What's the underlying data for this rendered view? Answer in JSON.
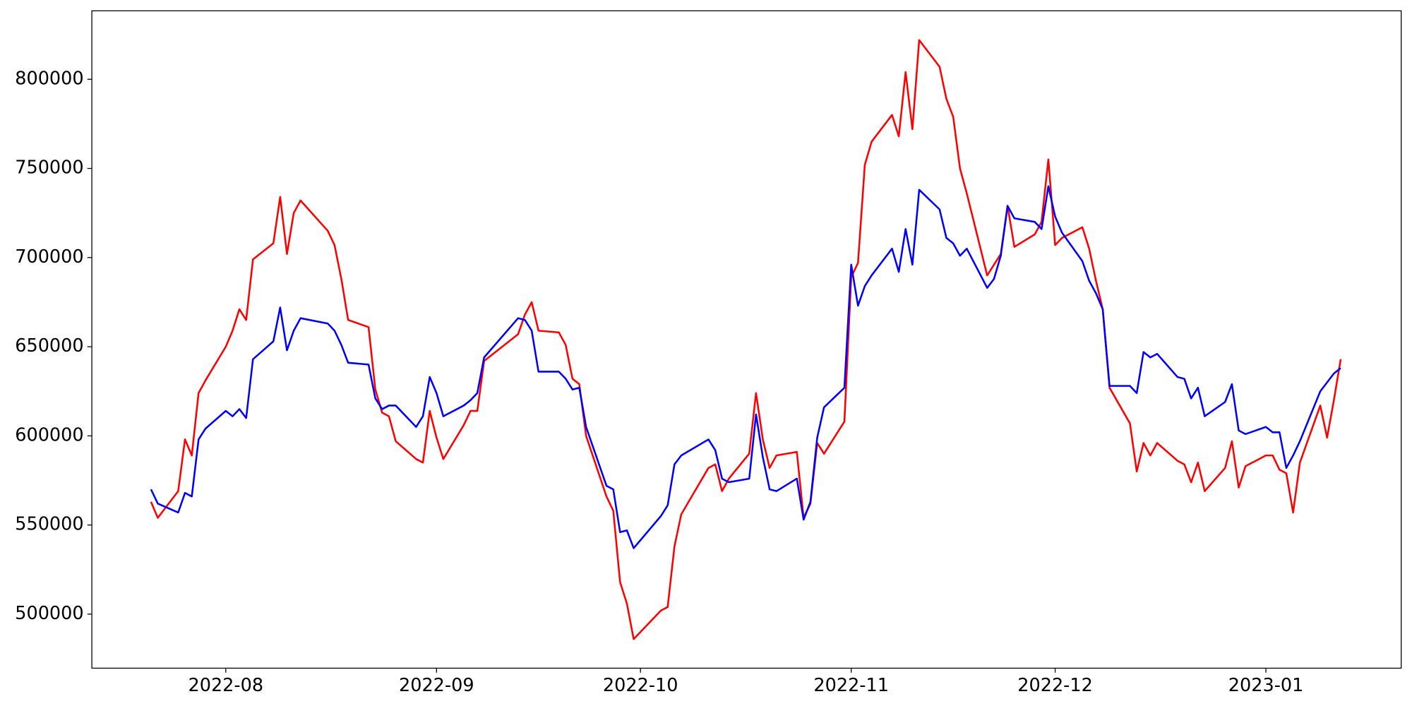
{
  "chart_data": {
    "type": "line",
    "x": [
      19194,
      19195,
      19198,
      19199,
      19200,
      19201,
      19202,
      19205,
      19206,
      19207,
      19208,
      19209,
      19212,
      19213,
      19214,
      19215,
      19216,
      19220,
      19221,
      19222,
      19223,
      19226,
      19227,
      19228,
      19229,
      19230,
      19233,
      19234,
      19235,
      19236,
      19237,
      19240,
      19241,
      19242,
      19243,
      19248,
      19249,
      19250,
      19251,
      19254,
      19255,
      19256,
      19257,
      19258,
      19261,
      19262,
      19263,
      19264,
      19265,
      19269,
      19270,
      19271,
      19272,
      19276,
      19277,
      19278,
      19279,
      19282,
      19283,
      19284,
      19285,
      19286,
      19289,
      19290,
      19291,
      19292,
      19293,
      19296,
      19297,
      19298,
      19299,
      19300,
      19303,
      19304,
      19305,
      19306,
      19307,
      19310,
      19311,
      19312,
      19313,
      19314,
      19317,
      19318,
      19319,
      19320,
      19321,
      19324,
      19325,
      19326,
      19327,
      19328,
      19331,
      19332,
      19333,
      19334,
      19335,
      19338,
      19339,
      19340,
      19341,
      19342,
      19345,
      19346,
      19347,
      19348,
      19349,
      19352,
      19353,
      19354,
      19355,
      19358,
      19359,
      19360,
      19361,
      19362,
      19363,
      19366,
      19367,
      19368,
      19369
    ],
    "series": [
      {
        "color": "red",
        "values": [
          563000,
          554000,
          569000,
          598000,
          589000,
          624000,
          631000,
          650000,
          659000,
          671000,
          665000,
          699000,
          708000,
          734000,
          702000,
          725000,
          732000,
          715000,
          707000,
          688000,
          665000,
          661000,
          626000,
          613000,
          611000,
          597000,
          587000,
          585000,
          614000,
          599000,
          587000,
          606000,
          614000,
          614000,
          642000,
          657000,
          668000,
          675000,
          659000,
          658000,
          651000,
          632000,
          629000,
          600000,
          566000,
          558000,
          518000,
          506000,
          486000,
          502000,
          504000,
          538000,
          556000,
          582000,
          584000,
          569000,
          576000,
          590000,
          624000,
          598000,
          582000,
          589000,
          591000,
          554000,
          562000,
          596000,
          590000,
          608000,
          689000,
          697000,
          752000,
          765000,
          780000,
          768000,
          804000,
          772000,
          822000,
          807000,
          789000,
          779000,
          750000,
          736000,
          690000,
          696000,
          702000,
          729000,
          706000,
          713000,
          720000,
          755000,
          707000,
          711000,
          717000,
          705000,
          687000,
          671000,
          627000,
          607000,
          580000,
          596000,
          589000,
          596000,
          586000,
          584000,
          574000,
          585000,
          569000,
          582000,
          597000,
          571000,
          583000,
          589000,
          589000,
          581000,
          579000,
          557000,
          585000,
          617000,
          599000,
          620000,
          643000
        ]
      },
      {
        "color": "blue",
        "values": [
          570000,
          562000,
          557000,
          568000,
          566000,
          598000,
          604000,
          614000,
          611000,
          615000,
          610000,
          643000,
          653000,
          672000,
          648000,
          659000,
          666000,
          663000,
          659000,
          651000,
          641000,
          640000,
          621000,
          615000,
          617000,
          617000,
          605000,
          611000,
          633000,
          624000,
          611000,
          617000,
          620000,
          624000,
          644000,
          666000,
          665000,
          659000,
          636000,
          636000,
          632000,
          626000,
          627000,
          605000,
          572000,
          570000,
          546000,
          547000,
          537000,
          555000,
          561000,
          584000,
          589000,
          598000,
          592000,
          576000,
          574000,
          576000,
          612000,
          588000,
          570000,
          569000,
          576000,
          553000,
          563000,
          599000,
          616000,
          627000,
          696000,
          673000,
          684000,
          690000,
          705000,
          692000,
          716000,
          696000,
          738000,
          727000,
          711000,
          708000,
          701000,
          705000,
          683000,
          688000,
          701000,
          729000,
          722000,
          720000,
          716000,
          740000,
          723000,
          714000,
          698000,
          687000,
          680000,
          671000,
          628000,
          628000,
          624000,
          647000,
          644000,
          646000,
          633000,
          632000,
          621000,
          627000,
          611000,
          619000,
          629000,
          603000,
          601000,
          605000,
          602000,
          602000,
          582000,
          589000,
          597000,
          625000,
          630000,
          635000,
          638000
        ]
      }
    ],
    "xlim": [
      19185.3,
      19377.9
    ],
    "xticks": [
      {
        "value": 19205,
        "label": "2022-08"
      },
      {
        "value": 19236,
        "label": "2022-09"
      },
      {
        "value": 19266,
        "label": "2022-10"
      },
      {
        "value": 19297,
        "label": "2022-11"
      },
      {
        "value": 19327,
        "label": "2022-12"
      },
      {
        "value": 19358,
        "label": "2023-01"
      }
    ],
    "ylim": [
      469700,
      838400
    ],
    "yticks": [
      500000,
      550000,
      600000,
      650000,
      700000,
      750000,
      800000
    ],
    "grid": false
  }
}
